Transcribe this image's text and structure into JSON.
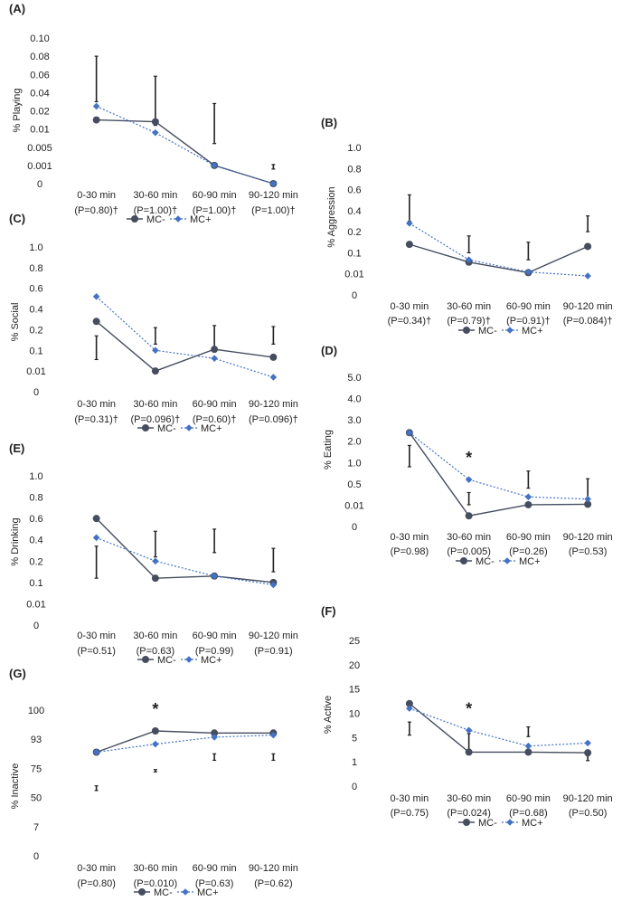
{
  "colors": {
    "mc_minus": "#454d5e",
    "mc_plus": "#4472c4",
    "error": "#222222"
  },
  "legend": {
    "mc_minus": "MC-",
    "mc_plus": "MC+"
  },
  "chart_data": [
    {
      "panel": "(A)",
      "type": "line",
      "ylabel": "% Playing",
      "yticks": [
        "0.10",
        "0.08",
        "0.06",
        "0.04",
        "0.02",
        "0.01",
        "0.005",
        "0.001",
        "0"
      ],
      "categories": [
        "0-30 min",
        "30-60 min",
        "60-90 min",
        "90-120 min"
      ],
      "pvalues": [
        "(P=0.80)†",
        "(P=1.00)†",
        "(P=1.00)†",
        "(P=1.00)†"
      ],
      "series": [
        {
          "name": "MC-",
          "values": [
            0.015,
            0.014,
            0.001,
            0
          ]
        },
        {
          "name": "MC+",
          "values": [
            0.025,
            0.009,
            0.001,
            0
          ]
        }
      ],
      "error_bars": [
        [
          0.03,
          0.08
        ],
        [
          0.012,
          0.058
        ],
        [
          0.006,
          0.028
        ],
        [
          0.0008,
          0.0012
        ]
      ],
      "significance": []
    },
    {
      "panel": "(B)",
      "type": "line",
      "ylabel": "% Aggression",
      "yticks": [
        "1.0",
        "0.8",
        "0.6",
        "0.4",
        "0.2",
        "0.1",
        "0.01",
        "0"
      ],
      "categories": [
        "0-30 min",
        "30-60 min",
        "60-90 min",
        "90-120 min"
      ],
      "pvalues": [
        "(P=0.34)†",
        "(P=0.79)†",
        "(P=0.91)†",
        "(P=0.084)†"
      ],
      "series": [
        {
          "name": "MC-",
          "values": [
            0.14,
            0.06,
            0.015,
            0.13
          ]
        },
        {
          "name": "MC+",
          "values": [
            0.28,
            0.07,
            0.018,
            0.009
          ]
        }
      ],
      "error_bars": [
        [
          0.3,
          0.55
        ],
        [
          0.1,
          0.18
        ],
        [
          0.07,
          0.15
        ],
        [
          0.2,
          0.35
        ]
      ],
      "significance": []
    },
    {
      "panel": "(C)",
      "type": "line",
      "ylabel": "% Social",
      "yticks": [
        "1.0",
        "0.8",
        "0.6",
        "0.4",
        "0.2",
        "0.1",
        "0.01",
        "0"
      ],
      "categories": [
        "0-30 min",
        "30-60 min",
        "60-90 min",
        "90-120 min"
      ],
      "pvalues": [
        "(P=0.31)†",
        "(P=0.096)†",
        "(P=0.60)†",
        "(P=0.096)†"
      ],
      "series": [
        {
          "name": "MC-",
          "values": [
            0.28,
            0.01,
            0.105,
            0.07
          ]
        },
        {
          "name": "MC+",
          "values": [
            0.52,
            0.1,
            0.065,
            0.007
          ]
        }
      ],
      "error_bars": [
        [
          0.06,
          0.17
        ],
        [
          0.13,
          0.22
        ],
        [
          0.11,
          0.24
        ],
        [
          0.13,
          0.23
        ]
      ],
      "significance": []
    },
    {
      "panel": "(D)",
      "type": "line",
      "ylabel": "% Eating",
      "yticks": [
        "5.0",
        "4.0",
        "3.0",
        "2.0",
        "1.0",
        "0.5",
        "0.01",
        "0"
      ],
      "categories": [
        "0-30 min",
        "30-60 min",
        "60-90 min",
        "90-120 min"
      ],
      "pvalues": [
        "(P=0.98)",
        "(P=0.005)",
        "(P=0.26)",
        "(P=0.53)"
      ],
      "series": [
        {
          "name": "MC-",
          "values": [
            2.4,
            0.005,
            0.02,
            0.03
          ]
        },
        {
          "name": "MC+",
          "values": [
            2.4,
            0.6,
            0.2,
            0.15
          ]
        }
      ],
      "error_bars": [
        [
          0.9,
          1.8
        ],
        [
          0.02,
          0.3
        ],
        [
          0.4,
          0.8
        ],
        [
          0.15,
          0.62
        ]
      ],
      "significance": [
        "",
        "*",
        "",
        ""
      ]
    },
    {
      "panel": "(E)",
      "type": "line",
      "ylabel": "% Drinking",
      "yticks": [
        "1.0",
        "0.8",
        "0.6",
        "0.4",
        "0.2",
        "0.1",
        "0.01",
        "0"
      ],
      "categories": [
        "0-30 min",
        "30-60 min",
        "60-90 min",
        "90-120 min"
      ],
      "pvalues": [
        "(P=0.51)",
        "(P=0.63)",
        "(P=0.99)",
        "(P=0.91)"
      ],
      "series": [
        {
          "name": "MC-",
          "values": [
            0.6,
            0.12,
            0.13,
            0.1
          ]
        },
        {
          "name": "MC+",
          "values": [
            0.42,
            0.2,
            0.13,
            0.09
          ]
        }
      ],
      "error_bars": [
        [
          0.12,
          0.34
        ],
        [
          0.24,
          0.48
        ],
        [
          0.28,
          0.5
        ],
        [
          0.15,
          0.32
        ]
      ],
      "significance": []
    },
    {
      "panel": "(F)",
      "type": "line",
      "ylabel": "% Active",
      "yticks": [
        "25",
        "20",
        "15",
        "10",
        "5",
        "1",
        "0"
      ],
      "categories": [
        "0-30 min",
        "30-60 min",
        "60-90 min",
        "90-120 min"
      ],
      "pvalues": [
        "(P=0.75)",
        "(P=0.024)",
        "(P=0.68)",
        "(P=0.50)"
      ],
      "series": [
        {
          "name": "MC-",
          "values": [
            12,
            2.6,
            2.6,
            2.5
          ]
        },
        {
          "name": "MC+",
          "values": [
            11,
            6.5,
            3.6,
            4.1
          ]
        }
      ],
      "error_bars": [
        [
          5.5,
          8.2
        ],
        [
          2.2,
          5.8
        ],
        [
          5.2,
          7.2
        ],
        [
          1.2,
          2.0
        ]
      ],
      "significance": [
        "",
        "*",
        "",
        ""
      ]
    },
    {
      "panel": "(G)",
      "type": "line",
      "ylabel": "% Inactive",
      "yticks": [
        "100",
        "93",
        "75",
        "50",
        "7",
        "0"
      ],
      "categories": [
        "0-30 min",
        "30-60 min",
        "60-90 min",
        "90-120 min"
      ],
      "pvalues": [
        "(P=0.80)",
        "(P=0.010)",
        "(P=0.63)",
        "(P=0.62)"
      ],
      "series": [
        {
          "name": "MC-",
          "values": [
            85,
            95,
            94.5,
            94.5
          ]
        },
        {
          "name": "MC+",
          "values": [
            85,
            90,
            93.5,
            94
          ]
        }
      ],
      "error_bars": [
        [
          56,
          60
        ],
        [
          72,
          74
        ],
        [
          80,
          84
        ],
        [
          80,
          84
        ]
      ],
      "significance": [
        "",
        "*",
        "",
        ""
      ]
    }
  ]
}
